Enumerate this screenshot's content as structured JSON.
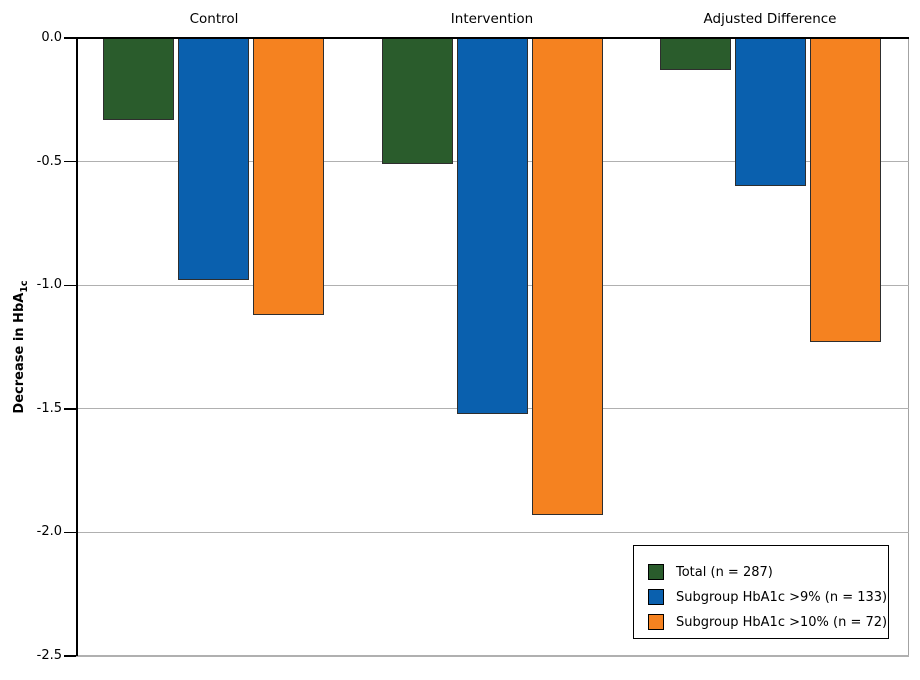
{
  "chart_data": {
    "type": "bar",
    "title": "",
    "categories": [
      "Control",
      "Intervention",
      "Adjusted Difference"
    ],
    "series": [
      {
        "name": "Total (n = 287)",
        "color": "#2a5c2c",
        "values": [
          -0.33,
          -0.51,
          -0.13
        ]
      },
      {
        "name": "Subgroup HbA1c >9% (n = 133)",
        "color": "#0a60ae",
        "values": [
          -0.98,
          -1.52,
          -0.6
        ]
      },
      {
        "name": "Subgroup HbA1c >10% (n = 72)",
        "color": "#f58220",
        "values": [
          -1.12,
          -1.93,
          -1.23
        ]
      }
    ],
    "xlabel": "",
    "ylabel": "Decrease in HbA1c",
    "ylabel_main": "Decrease in HbA",
    "ylabel_sub": "1c",
    "ylim": [
      -2.5,
      0
    ],
    "ytick_values": [
      0,
      -0.5,
      -1.0,
      -1.5,
      -2.0,
      -2.5
    ],
    "ytick_labels": [
      "0.0",
      "-0.5",
      "-1.0",
      "-1.5",
      "-2.0",
      "-2.5"
    ],
    "grid": true,
    "legend_position": "lower right",
    "bars_direction": "downward from zero line at top"
  }
}
